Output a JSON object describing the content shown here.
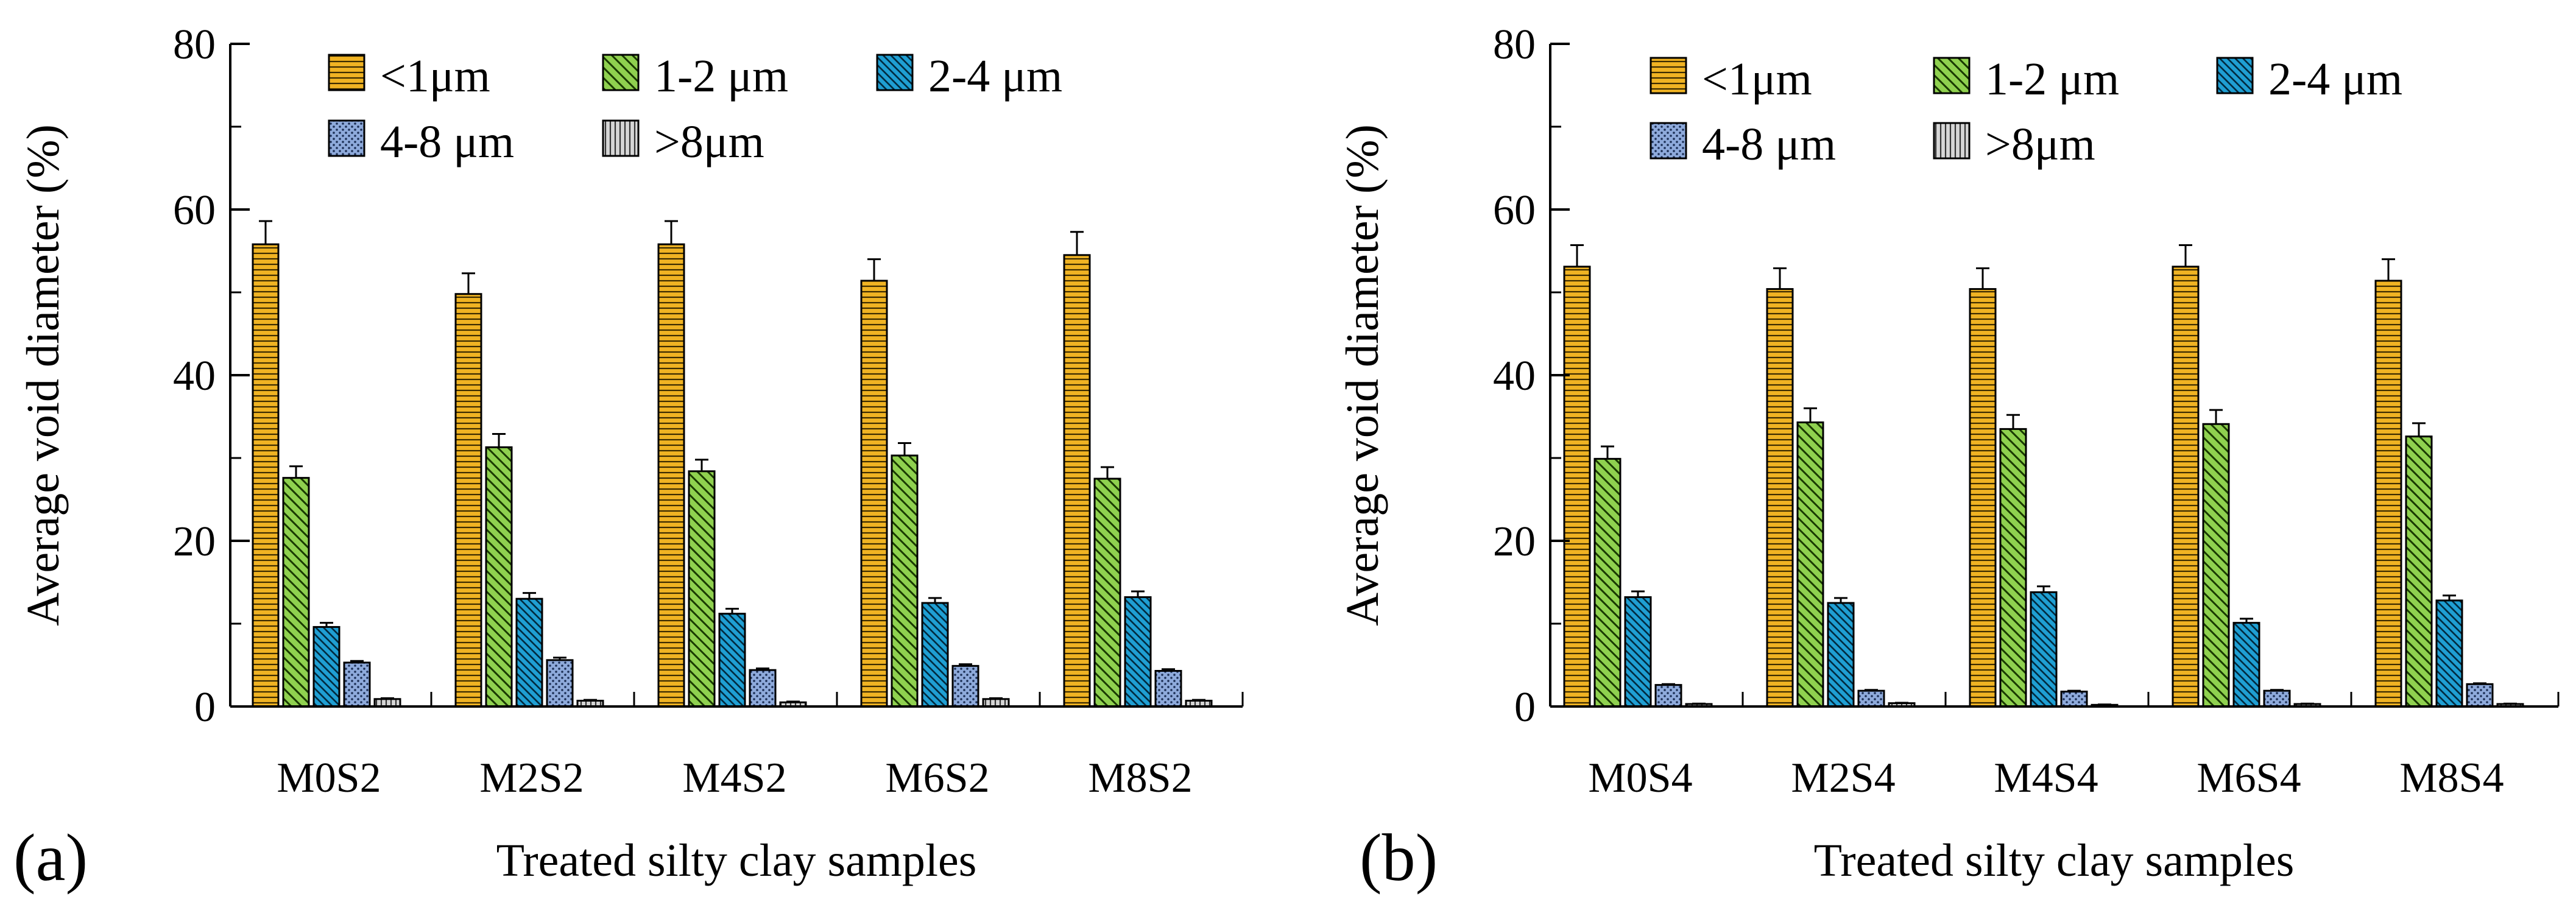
{
  "chart_data": [
    {
      "type": "bar",
      "panel_label": "(a)",
      "xlabel": "Treated silty clay samples",
      "ylabel": "Average void diameter (%)",
      "ylim": [
        0,
        80
      ],
      "yticks": [
        0,
        20,
        40,
        60,
        80
      ],
      "ytick_labels": [
        "0",
        "20",
        "40",
        "60",
        "80"
      ],
      "grid": false,
      "legend_position": "top",
      "categories": [
        "M0S2",
        "M2S2",
        "M4S2",
        "M6S2",
        "M8S2"
      ],
      "series": [
        {
          "name": "<1μm",
          "values": [
            55.8,
            49.8,
            55.8,
            51.4,
            54.5
          ],
          "errors": [
            2.8,
            2.5,
            2.8,
            2.6,
            2.8
          ]
        },
        {
          "name": "1-2 μm",
          "values": [
            27.6,
            31.3,
            28.4,
            30.3,
            27.5
          ],
          "errors": [
            1.4,
            1.6,
            1.4,
            1.5,
            1.4
          ]
        },
        {
          "name": "2-4 μm",
          "values": [
            9.6,
            13.0,
            11.2,
            12.5,
            13.2
          ],
          "errors": [
            0.5,
            0.7,
            0.6,
            0.6,
            0.7
          ]
        },
        {
          "name": "4-8 μm",
          "values": [
            5.3,
            5.6,
            4.4,
            4.9,
            4.3
          ],
          "errors": [
            0.2,
            0.3,
            0.2,
            0.2,
            0.2
          ]
        },
        {
          "name": ">8μm",
          "values": [
            0.9,
            0.7,
            0.5,
            0.9,
            0.7
          ],
          "errors": [
            0.1,
            0.1,
            0.1,
            0.1,
            0.1
          ]
        }
      ]
    },
    {
      "type": "bar",
      "panel_label": "(b)",
      "xlabel": "Treated silty clay samples",
      "ylabel": "Average void diameter (%)",
      "ylim": [
        0,
        80
      ],
      "yticks": [
        0,
        20,
        40,
        60,
        80
      ],
      "ytick_labels": [
        "0",
        "20",
        "40",
        "60",
        "80"
      ],
      "grid": false,
      "legend_position": "top",
      "categories": [
        "M0S4",
        "M2S4",
        "M4S4",
        "M6S4",
        "M8S4"
      ],
      "series": [
        {
          "name": "<1μm",
          "values": [
            53.1,
            50.4,
            50.4,
            53.1,
            51.4
          ],
          "errors": [
            2.6,
            2.5,
            2.5,
            2.6,
            2.6
          ]
        },
        {
          "name": "1-2 μm",
          "values": [
            29.9,
            34.3,
            33.5,
            34.1,
            32.6
          ],
          "errors": [
            1.5,
            1.7,
            1.7,
            1.7,
            1.6
          ]
        },
        {
          "name": "2-4 μm",
          "values": [
            13.2,
            12.5,
            13.8,
            10.1,
            12.8
          ],
          "errors": [
            0.7,
            0.6,
            0.7,
            0.5,
            0.6
          ]
        },
        {
          "name": "4-8 μm",
          "values": [
            2.6,
            1.9,
            1.8,
            1.9,
            2.7
          ],
          "errors": [
            0.1,
            0.1,
            0.1,
            0.1,
            0.1
          ]
        },
        {
          "name": ">8μm",
          "values": [
            0.3,
            0.4,
            0.2,
            0.3,
            0.3
          ],
          "errors": [
            0.05,
            0.05,
            0.05,
            0.05,
            0.05
          ]
        }
      ]
    }
  ],
  "series_colors": [
    "#f0b323",
    "#8fd14f",
    "#1f9fd3",
    "#8eaadb",
    "#c8c8c8"
  ],
  "series_patterns": [
    "horizontal-lines",
    "diagonal-lines",
    "diagonal-lines-dense",
    "dots",
    "vertical-lines"
  ]
}
